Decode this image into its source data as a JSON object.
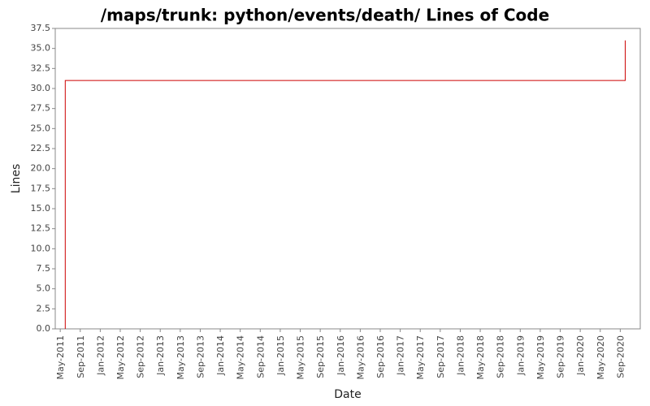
{
  "chart_data": {
    "type": "line",
    "title": "/maps/trunk: python/events/death/ Lines of Code",
    "x_label": "Date",
    "y_label": "Lines",
    "series": [
      {
        "name": "Lines",
        "color": "#cc0000",
        "x": [
          "2011-06",
          "2011-06",
          "2020-10",
          "2020-10"
        ],
        "values": [
          0,
          31,
          31,
          36
        ]
      }
    ],
    "step": true,
    "xlim": [
      "2011-04",
      "2021-01"
    ],
    "xticks": [
      {
        "value": "2011-05",
        "label": "May-2011"
      },
      {
        "value": "2011-09",
        "label": "Sep-2011"
      },
      {
        "value": "2012-01",
        "label": "Jan-2012"
      },
      {
        "value": "2012-05",
        "label": "May-2012"
      },
      {
        "value": "2012-09",
        "label": "Sep-2012"
      },
      {
        "value": "2013-01",
        "label": "Jan-2013"
      },
      {
        "value": "2013-05",
        "label": "May-2013"
      },
      {
        "value": "2013-09",
        "label": "Sep-2013"
      },
      {
        "value": "2014-01",
        "label": "Jan-2014"
      },
      {
        "value": "2014-05",
        "label": "May-2014"
      },
      {
        "value": "2014-09",
        "label": "Sep-2014"
      },
      {
        "value": "2015-01",
        "label": "Jan-2015"
      },
      {
        "value": "2015-05",
        "label": "May-2015"
      },
      {
        "value": "2015-09",
        "label": "Sep-2015"
      },
      {
        "value": "2016-01",
        "label": "Jan-2016"
      },
      {
        "value": "2016-05",
        "label": "May-2016"
      },
      {
        "value": "2016-09",
        "label": "Sep-2016"
      },
      {
        "value": "2017-01",
        "label": "Jan-2017"
      },
      {
        "value": "2017-05",
        "label": "May-2017"
      },
      {
        "value": "2017-09",
        "label": "Sep-2017"
      },
      {
        "value": "2018-01",
        "label": "Jan-2018"
      },
      {
        "value": "2018-05",
        "label": "May-2018"
      },
      {
        "value": "2018-09",
        "label": "Sep-2018"
      },
      {
        "value": "2019-01",
        "label": "Jan-2019"
      },
      {
        "value": "2019-05",
        "label": "May-2019"
      },
      {
        "value": "2019-09",
        "label": "Sep-2019"
      },
      {
        "value": "2020-01",
        "label": "Jan-2020"
      },
      {
        "value": "2020-05",
        "label": "May-2020"
      },
      {
        "value": "2020-09",
        "label": "Sep-2020"
      }
    ],
    "ylim": [
      0,
      37.5
    ],
    "yticks": [
      {
        "value": 0,
        "label": "0.0"
      },
      2.5,
      {
        "value": 5,
        "label": "5.0"
      },
      7.5,
      {
        "value": 10,
        "label": "10.0"
      },
      12.5,
      {
        "value": 15,
        "label": "15.0"
      },
      17.5,
      {
        "value": 20,
        "label": "20.0"
      },
      22.5,
      {
        "value": 25,
        "label": "25.0"
      },
      27.5,
      {
        "value": 30,
        "label": "30.0"
      },
      32.5,
      {
        "value": 35,
        "label": "35.0"
      },
      37.5
    ],
    "grid": false
  }
}
